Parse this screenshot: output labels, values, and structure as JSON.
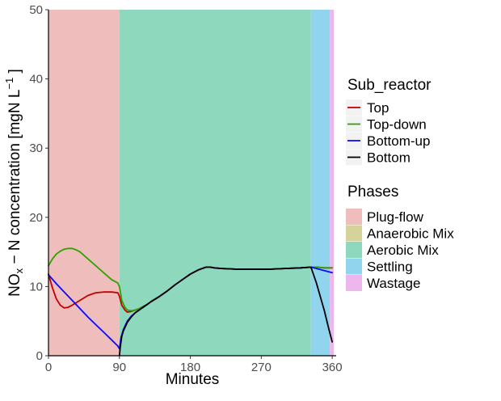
{
  "chart_data": {
    "type": "line",
    "xlabel": "Minutes",
    "ylabel": {
      "main": "NO",
      "sub": "x",
      "rest": " − N concentration [mgN L",
      "sup": "−1",
      "end": " ]"
    },
    "xlim": [
      0,
      365
    ],
    "ylim": [
      0,
      50
    ],
    "x_ticks": [
      0,
      90,
      180,
      270,
      360
    ],
    "y_ticks": [
      0,
      10,
      20,
      30,
      40,
      50
    ],
    "grid": false,
    "legend_placement": "right",
    "phases": [
      {
        "name": "Plug-flow",
        "start": 0,
        "end": 90,
        "color": "#efbdbb"
      },
      {
        "name": "Anaerobic Mix",
        "start": 90,
        "end": 90,
        "color": "#d6d39a"
      },
      {
        "name": "Aerobic Mix",
        "start": 90,
        "end": 333,
        "color": "#8ed9be"
      },
      {
        "name": "Settling",
        "start": 333,
        "end": 357,
        "color": "#90d4ee"
      },
      {
        "name": "Wastage",
        "start": 357,
        "end": 362,
        "color": "#ebb7ec"
      }
    ],
    "series": [
      {
        "name": "Top",
        "color": "#c40000",
        "x": [
          0,
          5,
          10,
          15,
          20,
          25,
          30,
          40,
          50,
          60,
          70,
          80,
          88,
          90,
          93,
          97,
          100,
          105,
          110,
          115,
          120,
          125,
          130,
          140,
          150,
          160,
          170,
          180,
          190,
          200,
          205,
          210,
          220,
          240,
          260,
          280,
          300,
          320,
          333,
          340,
          350,
          360
        ],
        "y": [
          11.8,
          9.8,
          8.2,
          7.3,
          6.9,
          7.0,
          7.3,
          8.0,
          8.7,
          9.1,
          9.2,
          9.2,
          9.1,
          8.6,
          7.3,
          6.6,
          6.3,
          6.4,
          6.6,
          6.8,
          7.1,
          7.4,
          7.8,
          8.5,
          9.3,
          10.2,
          11.0,
          11.8,
          12.4,
          12.8,
          12.8,
          12.7,
          12.6,
          12.5,
          12.5,
          12.5,
          12.6,
          12.7,
          12.8,
          12.8,
          12.7,
          12.7
        ]
      },
      {
        "name": "Top-down",
        "color": "#2ca400",
        "x": [
          0,
          5,
          10,
          15,
          20,
          25,
          30,
          35,
          40,
          50,
          60,
          70,
          80,
          88,
          90,
          93,
          97,
          100,
          105,
          110,
          115,
          120,
          125,
          130,
          140,
          150,
          160,
          170,
          180,
          190,
          200,
          205,
          210,
          220,
          240,
          260,
          280,
          300,
          320,
          333,
          340,
          350,
          360
        ],
        "y": [
          13.0,
          14.0,
          14.7,
          15.1,
          15.4,
          15.5,
          15.5,
          15.3,
          15.0,
          14.0,
          13.0,
          12.0,
          11.0,
          10.5,
          10.0,
          8.0,
          7.0,
          6.6,
          6.5,
          6.6,
          6.8,
          7.1,
          7.4,
          7.8,
          8.5,
          9.3,
          10.2,
          11.0,
          11.8,
          12.4,
          12.8,
          12.8,
          12.7,
          12.6,
          12.5,
          12.5,
          12.5,
          12.6,
          12.7,
          12.8,
          12.8,
          12.7,
          12.7
        ]
      },
      {
        "name": "Bottom-up",
        "color": "#0a0aff",
        "x": [
          0,
          10,
          20,
          30,
          40,
          50,
          60,
          70,
          80,
          88,
          90,
          92,
          95,
          100,
          105,
          110,
          115,
          120,
          125,
          130,
          140,
          150,
          160,
          170,
          180,
          190,
          200,
          205,
          210,
          220,
          240,
          260,
          280,
          300,
          320,
          333,
          340,
          350,
          360
        ],
        "y": [
          11.7,
          10.4,
          9.2,
          8.0,
          6.8,
          5.6,
          4.5,
          3.4,
          2.3,
          1.4,
          1.0,
          2.6,
          3.8,
          5.0,
          5.7,
          6.2,
          6.6,
          7.0,
          7.4,
          7.8,
          8.5,
          9.3,
          10.2,
          11.0,
          11.8,
          12.4,
          12.8,
          12.8,
          12.7,
          12.6,
          12.5,
          12.5,
          12.5,
          12.6,
          12.7,
          12.8,
          12.6,
          12.3,
          12.0
        ]
      },
      {
        "name": "Bottom",
        "color": "#000000",
        "x": [
          90,
          91,
          93,
          95,
          100,
          105,
          110,
          115,
          120,
          125,
          130,
          140,
          150,
          160,
          170,
          180,
          190,
          200,
          205,
          210,
          220,
          240,
          260,
          280,
          300,
          320,
          333,
          340,
          345,
          350,
          355,
          360
        ],
        "y": [
          0.0,
          1.2,
          2.8,
          3.6,
          4.8,
          5.6,
          6.2,
          6.6,
          7.0,
          7.4,
          7.8,
          8.5,
          9.3,
          10.2,
          11.0,
          11.8,
          12.4,
          12.8,
          12.8,
          12.7,
          12.6,
          12.5,
          12.5,
          12.5,
          12.6,
          12.7,
          12.8,
          10.5,
          8.5,
          6.5,
          4.2,
          2.0
        ]
      }
    ],
    "legend": {
      "sub_reactor_title": "Sub_reactor",
      "phases_title": "Phases"
    }
  }
}
